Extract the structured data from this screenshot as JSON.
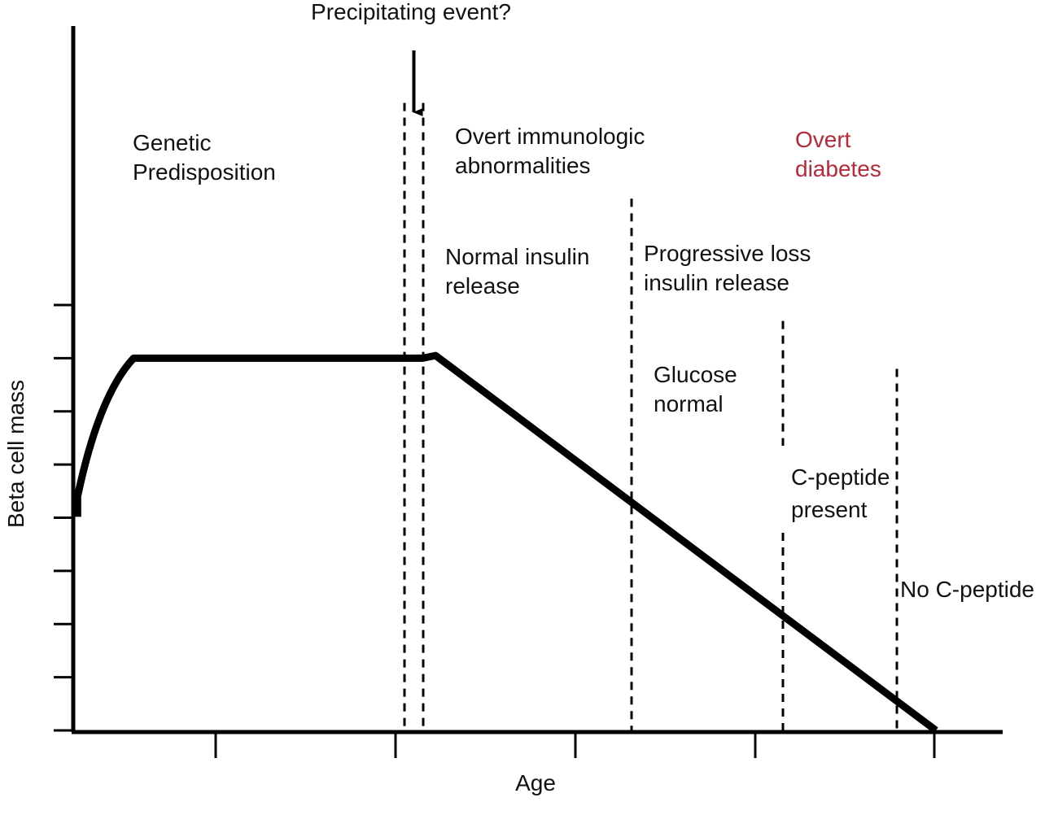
{
  "chart_data": {
    "type": "line",
    "title": "",
    "xlabel": "Age",
    "ylabel": "Beta cell mass",
    "x_tick_count": 5,
    "y_tick_count": 8,
    "grid": false,
    "legend": "none",
    "xlim": [
      0,
      10
    ],
    "ylim": [
      0,
      8
    ],
    "series": [
      {
        "name": "",
        "color": "#000000",
        "points": [
          [
            0.05,
            4.4
          ],
          [
            0.3,
            5.9
          ],
          [
            0.7,
            7.0
          ],
          [
            4.05,
            7.0
          ],
          [
            4.2,
            7.05
          ],
          [
            10.0,
            0.0
          ]
        ]
      }
    ],
    "arrow": {
      "label": "Precipitating event?",
      "x": 4.1
    },
    "dashed_lines": [
      {
        "x": 3.8,
        "y_top": 11.8
      },
      {
        "x": 4.1,
        "y_top": 11.8
      },
      {
        "x": 6.3,
        "y_top": 10.0
      },
      {
        "x": 8.1,
        "y_top": 7.7
      },
      {
        "x": 9.4,
        "y_top": 6.8
      }
    ],
    "annotations": [
      {
        "lines": [
          "Genetic",
          "Predisposition"
        ],
        "color": "#111111"
      },
      {
        "lines": [
          "Overt immunologic",
          "abnormalities"
        ],
        "color": "#111111"
      },
      {
        "lines": [
          "Overt",
          "diabetes"
        ],
        "color": "#b5293a"
      },
      {
        "lines": [
          "Normal insulin",
          "release"
        ],
        "color": "#111111"
      },
      {
        "lines": [
          "Progressive loss",
          "insulin release"
        ],
        "color": "#111111"
      },
      {
        "lines": [
          "Glucose",
          "normal"
        ],
        "color": "#111111"
      },
      {
        "lines": [
          "C-peptide",
          "present"
        ],
        "color": "#111111"
      },
      {
        "lines": [
          "No C-peptide"
        ],
        "color": "#111111"
      }
    ]
  }
}
